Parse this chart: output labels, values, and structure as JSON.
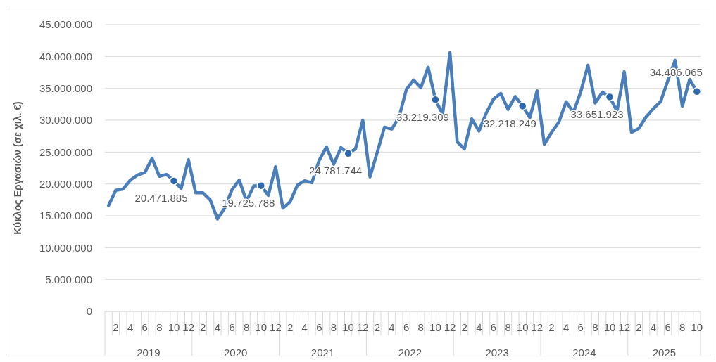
{
  "chart_data": {
    "type": "line",
    "ylabel": "Κύκλος Εργασιών (σε χιλ. €)",
    "categories": [
      null,
      "2",
      null,
      "4",
      null,
      "6",
      null,
      "8",
      null,
      "10",
      null,
      "12",
      null,
      "2",
      null,
      "4",
      null,
      "6",
      null,
      "8",
      null,
      "10",
      null,
      "12",
      null,
      "2",
      null,
      "4",
      null,
      "6",
      null,
      "8",
      null,
      "10",
      null,
      "12",
      null,
      "2",
      null,
      "4",
      null,
      "6",
      null,
      "8",
      null,
      "10",
      null,
      "12",
      null,
      "2",
      null,
      "4",
      null,
      "6",
      null,
      "8",
      null,
      "10",
      null,
      "12",
      null,
      "2",
      null,
      "4",
      null,
      "6",
      null,
      "8",
      null,
      "10",
      null,
      "12",
      null,
      "2",
      null,
      "4",
      null,
      "6",
      null,
      "8",
      null,
      "10"
    ],
    "annotations": [
      "2019",
      "2020",
      "2021",
      "2022",
      "2023",
      "2024",
      "2025"
    ],
    "series": [
      {
        "color": "#4a7ebb",
        "values": [
          16600000,
          19000000,
          19200000,
          20600000,
          21400000,
          21800000,
          24000000,
          21200000,
          21500000,
          20471885,
          19300000,
          23800000,
          18600000,
          18600000,
          17500000,
          14500000,
          16200000,
          19100000,
          20600000,
          17300000,
          19700000,
          19725788,
          18200000,
          22700000,
          16200000,
          17200000,
          19800000,
          20500000,
          20200000,
          23700000,
          25800000,
          23100000,
          25700000,
          24781744,
          25500000,
          30000000,
          21100000,
          25000000,
          28900000,
          28600000,
          30500000,
          34800000,
          36300000,
          35100000,
          38300000,
          33219309,
          30900000,
          40600000,
          26600000,
          25500000,
          30200000,
          28300000,
          31100000,
          33300000,
          34200000,
          31700000,
          33700000,
          32218249,
          30400000,
          34600000,
          26200000,
          28100000,
          29700000,
          32900000,
          31200000,
          34400000,
          38600000,
          32700000,
          34400000,
          33651923,
          31400000,
          37600000,
          28100000,
          28700000,
          30500000,
          31800000,
          32900000,
          36200000,
          39400000,
          32200000,
          36400000,
          34486065
        ],
        "value_labels": [
          null,
          null,
          null,
          null,
          null,
          null,
          null,
          null,
          null,
          "20.471.885",
          null,
          null,
          null,
          null,
          null,
          null,
          null,
          null,
          null,
          null,
          null,
          "19.725.788",
          null,
          null,
          null,
          null,
          null,
          null,
          null,
          null,
          null,
          null,
          null,
          "24.781.744",
          null,
          null,
          null,
          null,
          null,
          null,
          null,
          null,
          null,
          null,
          null,
          "33.219.309",
          null,
          null,
          null,
          null,
          null,
          null,
          null,
          null,
          null,
          null,
          null,
          "32.218.249",
          null,
          null,
          null,
          null,
          null,
          null,
          null,
          null,
          null,
          null,
          null,
          "33.651.923",
          null,
          null,
          null,
          null,
          null,
          null,
          null,
          null,
          null,
          null,
          null,
          "34.486.065"
        ]
      }
    ],
    "ylim": [
      0,
      45000000
    ],
    "yticks": [
      0,
      {
        "value": 5000000,
        "label": "5.000.000"
      },
      {
        "value": 10000000,
        "label": "10.000.000"
      },
      {
        "value": 15000000,
        "label": "15.000.000"
      },
      {
        "value": 20000000,
        "label": "20.000.000"
      },
      {
        "value": 25000000,
        "label": "25.000.000"
      },
      {
        "value": 30000000,
        "label": "30.000.000"
      },
      {
        "value": 35000000,
        "label": "35.000.000"
      },
      {
        "value": 40000000,
        "label": "40.000.000"
      },
      {
        "value": 45000000,
        "label": "45.000.000"
      }
    ],
    "grid": "y",
    "line_style": "solid"
  }
}
